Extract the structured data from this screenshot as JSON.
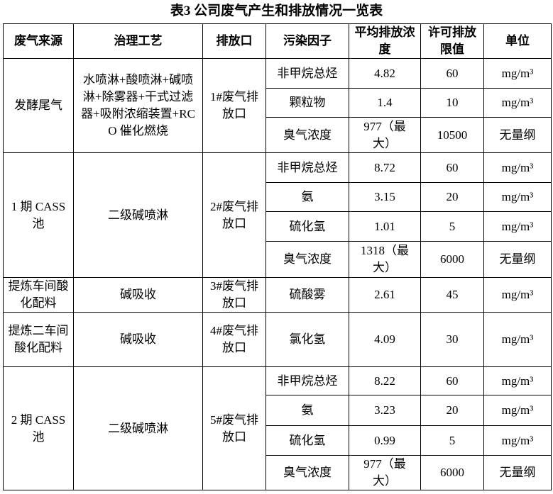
{
  "title": "表3  公司废气产生和排放情况一览表",
  "headers": [
    "废气来源",
    "治理工艺",
    "排放口",
    "污染因子",
    "平均排放浓度",
    "许可排放限值",
    "单位"
  ],
  "groups": [
    {
      "source": "发酵尾气",
      "process": "水喷淋+酸喷淋+碱喷淋+除雾器+干式过滤器+吸附浓缩装置+RCO 催化燃烧",
      "outlet": "1#废气排放口",
      "rows": [
        {
          "factor": "非甲烷总烃",
          "avg": "4.82",
          "limit": "60",
          "unit": "mg/m³"
        },
        {
          "factor": "颗粒物",
          "avg": "1.4",
          "limit": "10",
          "unit": "mg/m³"
        },
        {
          "factor": "臭气浓度",
          "avg": "977（最大）",
          "limit": "10500",
          "unit": "无量纲"
        }
      ]
    },
    {
      "source": "1 期 CASS 池",
      "process": "二级碱喷淋",
      "outlet": "2#废气排放口",
      "rows": [
        {
          "factor": "非甲烷总烃",
          "avg": "8.72",
          "limit": "60",
          "unit": "mg/m³"
        },
        {
          "factor": "氨",
          "avg": "3.15",
          "limit": "20",
          "unit": "mg/m³"
        },
        {
          "factor": "硫化氢",
          "avg": "1.01",
          "limit": "5",
          "unit": "mg/m³"
        },
        {
          "factor": "臭气浓度",
          "avg": "1318（最大）",
          "limit": "6000",
          "unit": "无量纲"
        }
      ]
    },
    {
      "source": "提炼车间酸化配料",
      "process": "碱吸收",
      "outlet": "3#废气排放口",
      "rows": [
        {
          "factor": "硫酸雾",
          "avg": "2.61",
          "limit": "45",
          "unit": "mg/m³"
        }
      ]
    },
    {
      "source": "提炼二车间酸化配料",
      "process": "碱吸收",
      "outlet": "4#废气排放口",
      "rows": [
        {
          "factor": "氯化氢",
          "avg": "4.09",
          "limit": "30",
          "unit": "mg/m³"
        }
      ]
    },
    {
      "source": "2 期 CASS 池",
      "process": "二级碱喷淋",
      "outlet": "5#废气排放口",
      "rows": [
        {
          "factor": "非甲烷总烃",
          "avg": "8.22",
          "limit": "60",
          "unit": "mg/m³"
        },
        {
          "factor": "氨",
          "avg": "3.23",
          "limit": "20",
          "unit": "mg/m³"
        },
        {
          "factor": "硫化氢",
          "avg": "0.99",
          "limit": "5",
          "unit": "mg/m³"
        },
        {
          "factor": "臭气浓度",
          "avg": "977（最大）",
          "limit": "6000",
          "unit": "无量纲"
        }
      ]
    }
  ]
}
